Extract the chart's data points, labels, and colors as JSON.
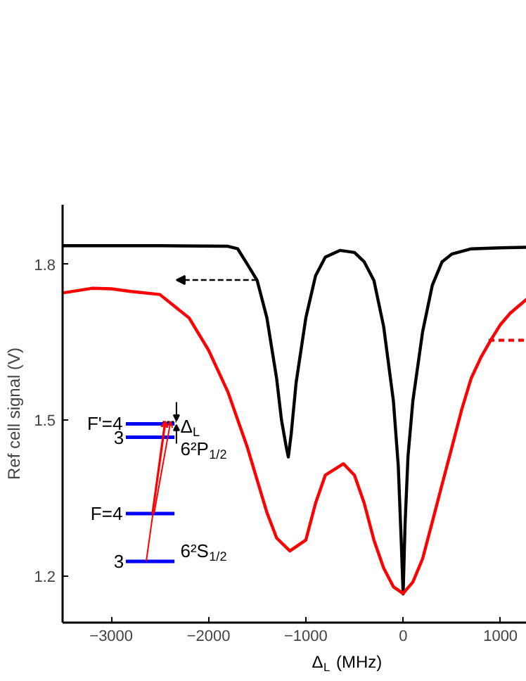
{
  "chart_data": {
    "type": "line",
    "xlabel": "Δ$_{L}$ (MHz)",
    "ylabel": "Ref cell signal (V)",
    "xlim": [
      -3500,
      1270
    ],
    "ylim": [
      1.11,
      1.915
    ],
    "xticks": [
      -3000,
      -2000,
      -1000,
      0,
      1000
    ],
    "yticks": [
      1.2,
      1.5,
      1.8
    ],
    "grid": false,
    "marker": "none",
    "line_style": "solid",
    "series": [
      {
        "color": "#000000",
        "x": [
          -3500,
          -2500,
          -1800,
          -1700,
          -1600,
          -1500,
          -1400,
          -1300,
          -1250,
          -1200,
          -1180,
          -1150,
          -1100,
          -1000,
          -900,
          -800,
          -650,
          -500,
          -400,
          -300,
          -200,
          -100,
          -50,
          -20,
          0,
          20,
          50,
          100,
          200,
          300,
          400,
          500,
          700,
          1000,
          1270
        ],
        "values": [
          1.836,
          1.836,
          1.835,
          1.83,
          1.8,
          1.769,
          1.697,
          1.58,
          1.5,
          1.447,
          1.429,
          1.474,
          1.572,
          1.697,
          1.778,
          1.814,
          1.827,
          1.823,
          1.805,
          1.769,
          1.68,
          1.537,
          1.412,
          1.269,
          1.165,
          1.3,
          1.43,
          1.537,
          1.67,
          1.76,
          1.805,
          1.82,
          1.83,
          1.832,
          1.833
        ]
      },
      {
        "color": "#ff0000",
        "x": [
          -3500,
          -3200,
          -3000,
          -2800,
          -2500,
          -2200,
          -2000,
          -1800,
          -1600,
          -1400,
          -1300,
          -1164,
          -1000,
          -900,
          -800,
          -613,
          -500,
          -400,
          -300,
          -200,
          -100,
          0,
          100,
          200,
          300,
          400,
          500,
          600,
          700,
          800,
          900,
          1000,
          1100,
          1270
        ],
        "values": [
          1.745,
          1.754,
          1.753,
          1.748,
          1.742,
          1.697,
          1.635,
          1.554,
          1.447,
          1.322,
          1.273,
          1.248,
          1.269,
          1.34,
          1.394,
          1.416,
          1.394,
          1.34,
          1.269,
          1.215,
          1.179,
          1.166,
          1.188,
          1.233,
          1.304,
          1.376,
          1.447,
          1.519,
          1.581,
          1.621,
          1.654,
          1.684,
          1.706,
          1.733
        ]
      },
      {
        "color": "#ff0000",
        "type": "line",
        "line_style": "dashed",
        "x": [
          880,
          1270
        ],
        "values": [
          1.654,
          1.654
        ]
      }
    ],
    "annotations": [
      "F'=4",
      "3",
      "F=4",
      "3",
      "6²P$_{1/2}$",
      "6²S$_{1/2}$",
      "Δ$_{L}$"
    ]
  }
}
